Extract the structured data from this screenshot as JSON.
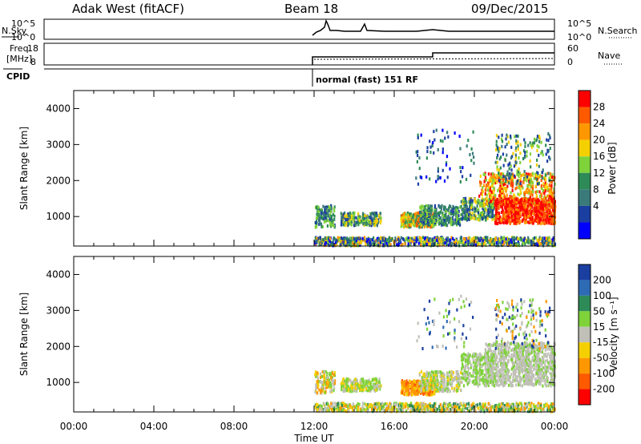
{
  "header": {
    "station": "Adak West (fitACF)",
    "beam": "Beam 18",
    "date": "09/Dec/2015"
  },
  "status_panels": {
    "nsky": {
      "label": "N.Sky",
      "ticks": [
        "10^5",
        "10^0"
      ]
    },
    "nsearch": {
      "label": "N.Search",
      "ticks": [
        "10^5",
        "10^0"
      ]
    },
    "freq": {
      "label_line1": "Freq.",
      "label_line2": "[MHz]",
      "ticks": [
        "18",
        "8"
      ]
    },
    "nave": {
      "label": "Nave",
      "ticks": [
        "60",
        "0"
      ]
    },
    "cpid": {
      "label": "CPID",
      "value": "normal (fast) 151 RF"
    }
  },
  "chart_data": [
    {
      "type": "heatmap",
      "title": "",
      "xlabel": "",
      "ylabel": "Slant Range [km]",
      "xlim": [
        "00:00",
        "24:00"
      ],
      "ylim": [
        180,
        4500
      ],
      "yticks": [
        1000,
        2000,
        3000,
        4000
      ],
      "colorbar": {
        "label": "Power [dB]",
        "ticks": [
          28,
          24,
          20,
          16,
          12,
          8,
          4
        ],
        "colors": [
          "#ff0000",
          "#ff5a00",
          "#ff9800",
          "#f5d000",
          "#7fd23a",
          "#2e8b57",
          "#3a7a7a",
          "#1b3fa0",
          "#0000ff"
        ]
      },
      "data_start_hour": 12
    },
    {
      "type": "heatmap",
      "title": "",
      "xlabel": "Time UT",
      "ylabel": "Slant Range [km]",
      "xlim": [
        "00:00",
        "24:00"
      ],
      "ylim": [
        180,
        4500
      ],
      "yticks": [
        1000,
        2000,
        3000,
        4000
      ],
      "xticks": [
        "00:00",
        "04:00",
        "08:00",
        "12:00",
        "16:00",
        "20:00",
        "00:00"
      ],
      "colorbar": {
        "label": "Velocity [m s⁻¹]",
        "ticks": [
          200,
          100,
          50,
          15,
          -15,
          -50,
          -100,
          -200
        ],
        "colors": [
          "#1b3fa0",
          "#2e6bb5",
          "#2e8b57",
          "#7fd23a",
          "#c0c0b8",
          "#f5d000",
          "#ff9800",
          "#ff5a00",
          "#ff0000"
        ]
      },
      "data_start_hour": 12
    }
  ]
}
